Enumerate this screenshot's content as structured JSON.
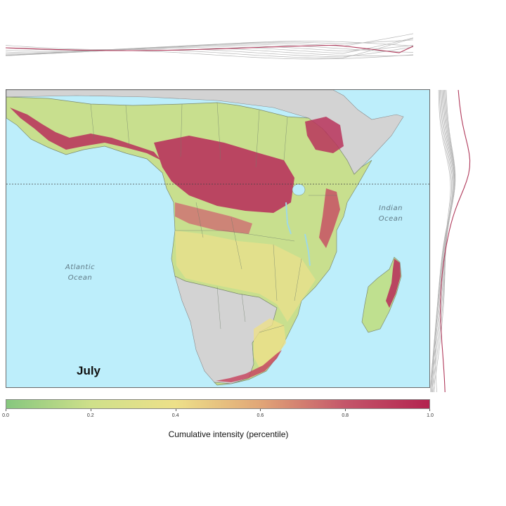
{
  "map": {
    "month": "July",
    "ocean_labels": {
      "atlantic": [
        "Atlantic",
        "Ocean"
      ],
      "indian": [
        "Indian",
        "Ocean"
      ]
    },
    "equator_line": "dotted",
    "colors": {
      "water": "#bdeefb",
      "no_data_land": "#d3d3d3",
      "low": "#86c77e",
      "mid": "#ede089",
      "high": "#b8345c",
      "profile_highlight": "#b03a5b",
      "profile_other": "#b5b5b5"
    }
  },
  "colorbar": {
    "title": "Cumulative intensity (percentile)",
    "ticks": [
      "0.0",
      "0.2",
      "0.4",
      "0.6",
      "0.8",
      "1.0"
    ],
    "range": [
      0,
      1
    ],
    "gradient": [
      "#86c77e",
      "#cfe08a",
      "#ede089",
      "#e1a677",
      "#c4566a",
      "#b3234f"
    ]
  }
}
